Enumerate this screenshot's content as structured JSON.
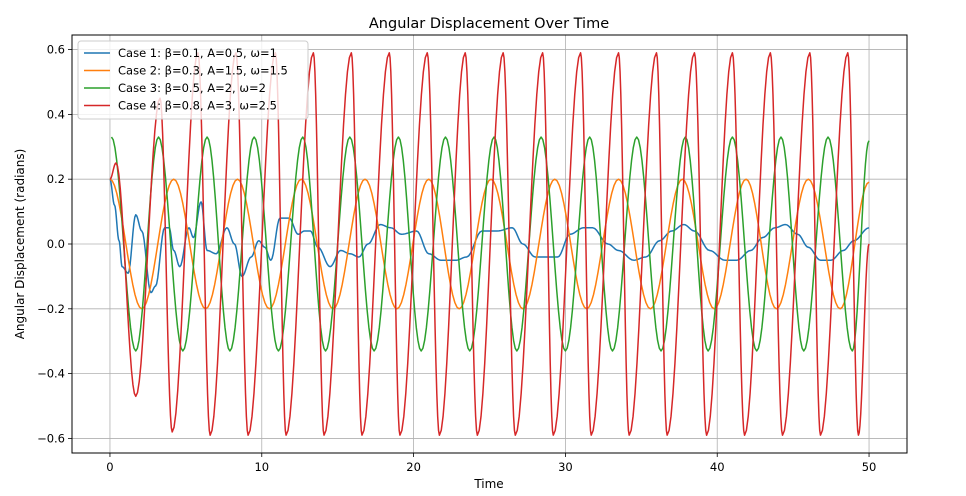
{
  "chart_data": {
    "type": "line",
    "title": "Angular Displacement Over Time",
    "xlabel": "Time",
    "ylabel": "Angular Displacement (radians)",
    "xlim": [
      -2.5,
      52.5
    ],
    "ylim": [
      -0.645,
      0.645
    ],
    "xticks": [
      0,
      10,
      20,
      30,
      40,
      50
    ],
    "yticks": [
      -0.6,
      -0.4,
      -0.2,
      0.0,
      0.2,
      0.4,
      0.6
    ],
    "ytick_labels": [
      "−0.6",
      "−0.4",
      "−0.2",
      "0.0",
      "0.2",
      "0.4",
      "0.6"
    ],
    "grid": true,
    "legend_position": "upper-left",
    "series": [
      {
        "name": "Case 1: β=0.1, A=0.5, ω=1",
        "color": "#1f77b4",
        "x": [
          0,
          0.3,
          0.6,
          0.8,
          1.2,
          1.7,
          2.1,
          2.7,
          3.0,
          3.6,
          3.9,
          4.2,
          4.6,
          5.2,
          5.5,
          6.0,
          6.4,
          7.0,
          7.7,
          8.2,
          8.7,
          9.3,
          9.8,
          10.2,
          10.6,
          11.2,
          11.8,
          12.4,
          12.8,
          13.2,
          13.7,
          14.5,
          15.2,
          15.8,
          16.4,
          17.0,
          17.8,
          18.5,
          19.2,
          20.2,
          21.0,
          21.8,
          22.8,
          23.5,
          24.5,
          25.5,
          26.5,
          27.2,
          28.0,
          28.8,
          29.5,
          30.3,
          31.2,
          31.8,
          32.8,
          33.5,
          34.5,
          35.3,
          36.2,
          37.0,
          37.8,
          38.5,
          39.5,
          40.5,
          41.3,
          42.2,
          43.0,
          43.8,
          44.5,
          45.3,
          46.0,
          46.8,
          47.5,
          48.3,
          49.0,
          50.0
        ],
        "y": [
          0.2,
          0.12,
          0.01,
          -0.07,
          -0.09,
          0.09,
          0.04,
          -0.15,
          -0.13,
          0.05,
          0.05,
          -0.02,
          -0.07,
          0.05,
          0.02,
          0.13,
          -0.02,
          -0.03,
          0.05,
          0.0,
          -0.1,
          -0.04,
          0.01,
          -0.01,
          -0.05,
          0.08,
          0.08,
          0.03,
          0.04,
          0.04,
          -0.01,
          -0.07,
          -0.02,
          -0.03,
          -0.04,
          0.0,
          0.06,
          0.05,
          0.03,
          0.04,
          -0.03,
          -0.05,
          -0.05,
          -0.04,
          0.04,
          0.04,
          0.05,
          0.0,
          -0.04,
          -0.04,
          -0.04,
          0.03,
          0.05,
          0.05,
          0.0,
          -0.02,
          -0.05,
          -0.04,
          0.01,
          0.04,
          0.06,
          0.04,
          -0.02,
          -0.05,
          -0.05,
          -0.02,
          0.02,
          0.05,
          0.06,
          0.03,
          -0.01,
          -0.05,
          -0.05,
          -0.02,
          0.01,
          0.05
        ]
      },
      {
        "name": "Case 2: β=0.3, A=1.5, ω=1.5",
        "color": "#ff7f0e",
        "peaks_x": [
          0,
          4.2,
          8.4,
          12.6,
          16.8,
          21.0,
          25.1,
          29.3,
          33.5,
          37.7,
          41.9,
          46.0,
          50.2
        ],
        "trough_x": [
          2.1,
          6.3,
          10.5,
          14.7,
          18.9,
          23.0,
          27.2,
          31.4,
          35.6,
          39.8,
          43.9,
          48.1
        ],
        "peak_value": 0.2,
        "trough_value": -0.2
      },
      {
        "name": "Case 3: β=0.5, A=2, ω=2",
        "color": "#2ca02c",
        "peaks_x": [
          0.1,
          3.2,
          6.4,
          9.5,
          12.7,
          15.8,
          19.0,
          22.1,
          25.3,
          28.4,
          31.6,
          34.7,
          37.9,
          41.0,
          44.2,
          47.3,
          50.1
        ],
        "trough_x": [
          1.7,
          4.8,
          7.9,
          11.1,
          14.2,
          17.4,
          20.5,
          23.7,
          26.8,
          30.0,
          33.1,
          36.3,
          39.4,
          42.6,
          45.7,
          48.9
        ],
        "peak_value": 0.33,
        "trough_value": -0.33
      },
      {
        "name": "Case 4: β=0.8, A=3, ω=2.5",
        "color": "#d62728",
        "peaks_x": [
          0.4,
          3.3,
          5.8,
          8.3,
          10.9,
          13.4,
          15.9,
          18.4,
          20.9,
          23.4,
          25.9,
          28.5,
          31.0,
          33.5,
          36.0,
          38.5,
          41.0,
          43.5,
          46.1,
          48.6
        ],
        "trough_x": [
          1.7,
          4.1,
          6.6,
          9.1,
          11.6,
          14.1,
          16.6,
          19.1,
          21.7,
          24.2,
          26.7,
          29.2,
          31.7,
          34.2,
          36.7,
          39.3,
          41.8,
          44.3,
          46.8,
          49.3
        ],
        "peak_values": [
          0.25,
          0.45,
          0.59,
          0.59,
          0.59,
          0.59,
          0.59,
          0.59,
          0.59,
          0.59,
          0.59,
          0.59,
          0.59,
          0.59,
          0.59,
          0.59,
          0.59,
          0.59,
          0.59,
          0.59
        ],
        "trough_values": [
          -0.47,
          -0.58,
          -0.59,
          -0.59,
          -0.59,
          -0.59,
          -0.59,
          -0.59,
          -0.59,
          -0.59,
          -0.59,
          -0.59,
          -0.59,
          -0.59,
          -0.59,
          -0.59,
          -0.59,
          -0.59,
          -0.59,
          -0.59
        ],
        "start_value": 0.2,
        "end_value": 0.0
      }
    ]
  }
}
